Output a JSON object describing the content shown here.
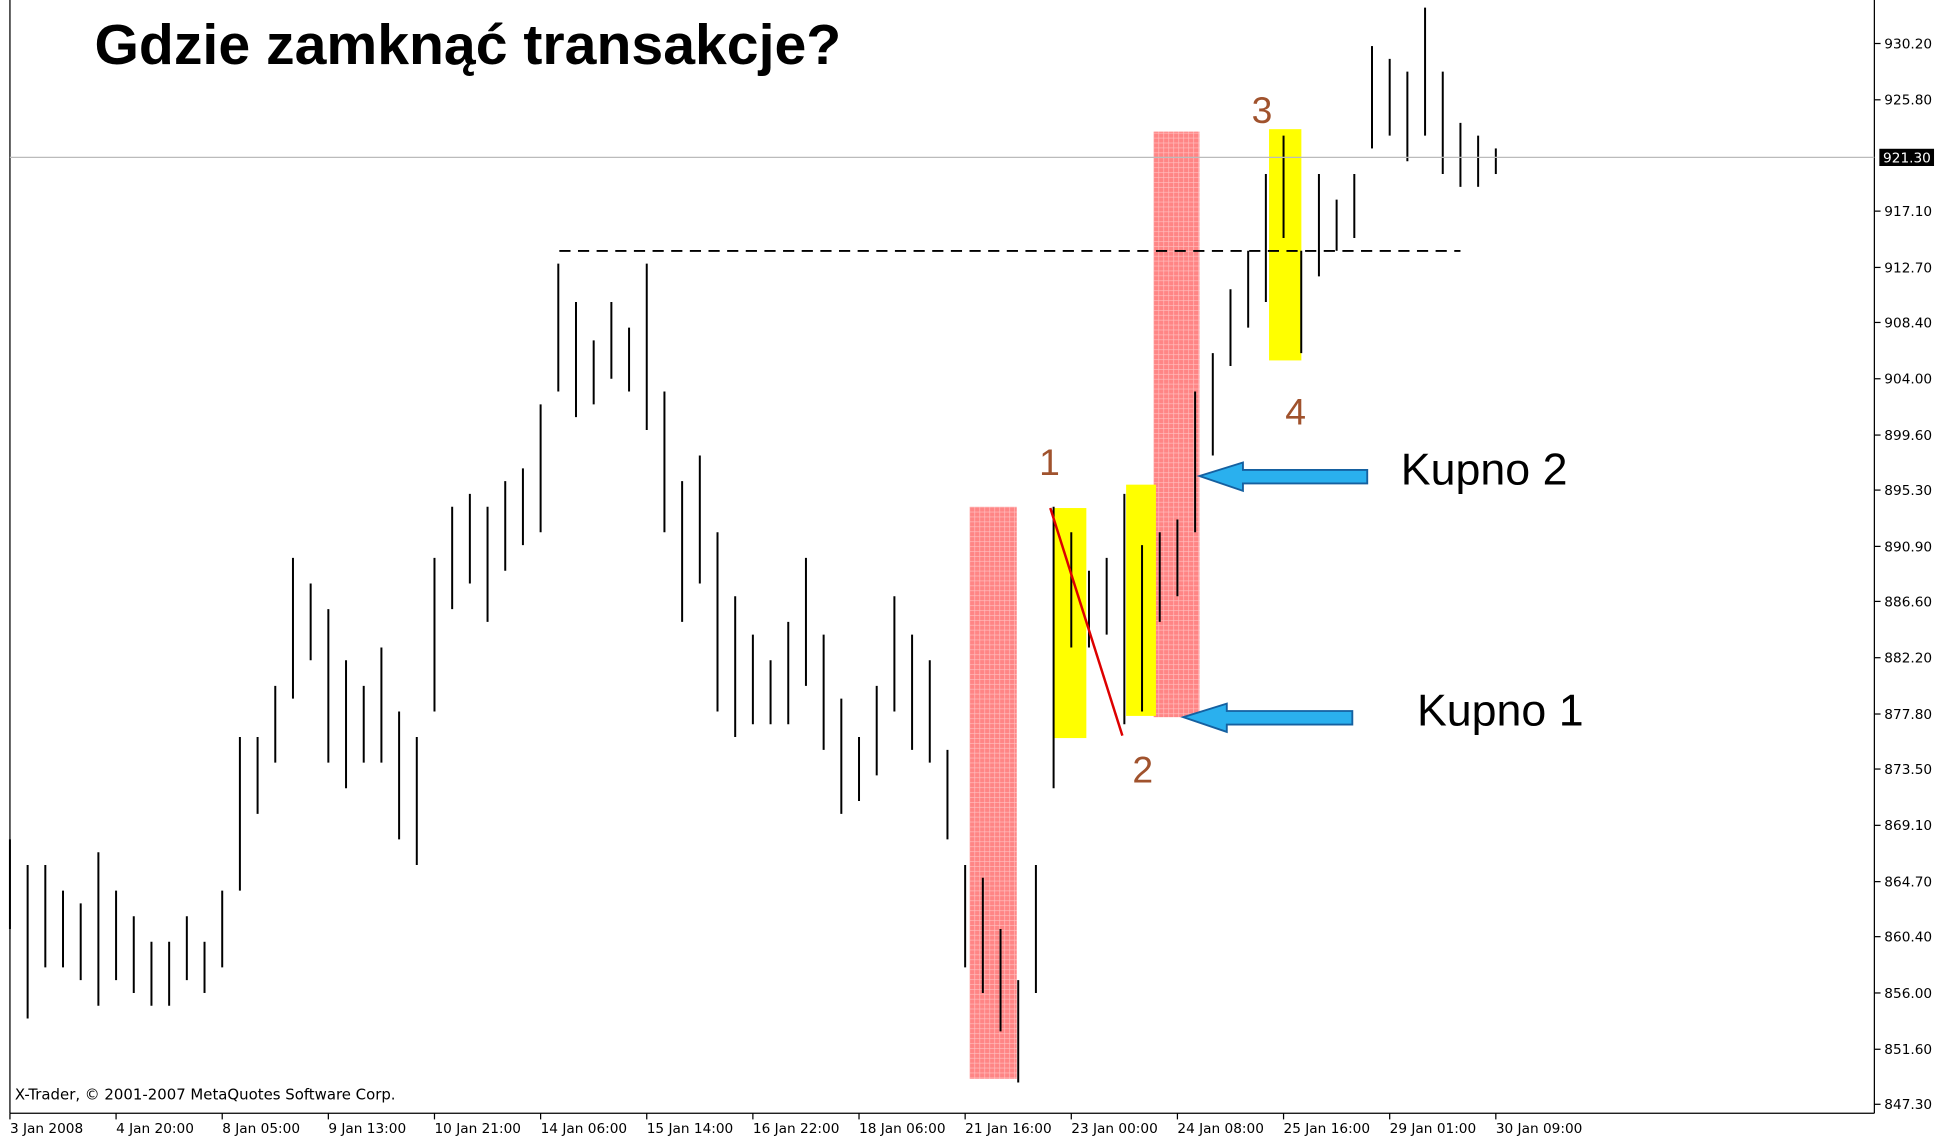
{
  "chart_data": {
    "type": "ohlc",
    "title": "Gdzie zamknąć transakcje?",
    "copyright": "X-Trader, © 2001-2007 MetaQuotes Software Corp.",
    "color": "#000000",
    "high": [
      868,
      866,
      866,
      864,
      863,
      867,
      864,
      862,
      860,
      860,
      862,
      860,
      864,
      876,
      876,
      880,
      890,
      888,
      886,
      882,
      880,
      883,
      878,
      876,
      890,
      894,
      895,
      894,
      896,
      897,
      902,
      913,
      910,
      907,
      910,
      908,
      913,
      903,
      896,
      898,
      892,
      887,
      884,
      882,
      885,
      890,
      884,
      879,
      876,
      880,
      887,
      884,
      882,
      875,
      866,
      865,
      861,
      857,
      866,
      894,
      892,
      889,
      890,
      895,
      891,
      892,
      893,
      903,
      906,
      911,
      914,
      920,
      923,
      914,
      920,
      918,
      920,
      930,
      929,
      928,
      933,
      928,
      924,
      923,
      922
    ],
    "low": [
      861,
      854,
      858,
      858,
      857,
      855,
      857,
      856,
      855,
      855,
      857,
      856,
      858,
      864,
      870,
      874,
      879,
      882,
      874,
      872,
      874,
      874,
      868,
      866,
      878,
      886,
      888,
      885,
      889,
      891,
      892,
      903,
      901,
      902,
      904,
      903,
      900,
      892,
      885,
      888,
      878,
      876,
      877,
      877,
      877,
      880,
      875,
      870,
      871,
      873,
      878,
      875,
      874,
      868,
      858,
      856,
      853,
      849,
      856,
      872,
      883,
      883,
      884,
      877,
      878,
      885,
      887,
      892,
      898,
      905,
      908,
      910,
      915,
      906,
      912,
      914,
      915,
      922,
      923,
      921,
      923,
      920,
      919,
      919,
      920
    ],
    "xlim": [
      0,
      105.4
    ],
    "xticks": [
      {
        "value": 0,
        "label": "3 Jan 2008"
      },
      {
        "value": 6,
        "label": "4 Jan 20:00"
      },
      {
        "value": 12,
        "label": "8 Jan 05:00"
      },
      {
        "value": 18,
        "label": "9 Jan 13:00"
      },
      {
        "value": 24,
        "label": "10 Jan 21:00"
      },
      {
        "value": 30,
        "label": "14 Jan 06:00"
      },
      {
        "value": 36,
        "label": "15 Jan 14:00"
      },
      {
        "value": 42,
        "label": "16 Jan 22:00"
      },
      {
        "value": 48,
        "label": "18 Jan 06:00"
      },
      {
        "value": 54,
        "label": "21 Jan 16:00"
      },
      {
        "value": 60,
        "label": "23 Jan 00:00"
      },
      {
        "value": 66,
        "label": "24 Jan 08:00"
      },
      {
        "value": 72,
        "label": "25 Jan 16:00"
      },
      {
        "value": 78,
        "label": "29 Jan 01:00"
      },
      {
        "value": 84,
        "label": "30 Jan 09:00"
      }
    ],
    "ylim": [
      846.6,
      933.6
    ],
    "yticks": [
      {
        "value": 847.3,
        "label": "847.30"
      },
      {
        "value": 851.6,
        "label": "851.60"
      },
      {
        "value": 856,
        "label": "856.00"
      },
      {
        "value": 860.4,
        "label": "860.40"
      },
      {
        "value": 864.7,
        "label": "864.70"
      },
      {
        "value": 869.1,
        "label": "869.10"
      },
      {
        "value": 873.5,
        "label": "873.50"
      },
      {
        "value": 877.8,
        "label": "877.80"
      },
      {
        "value": 882.2,
        "label": "882.20"
      },
      {
        "value": 886.6,
        "label": "886.60"
      },
      {
        "value": 890.9,
        "label": "890.90"
      },
      {
        "value": 895.3,
        "label": "895.30"
      },
      {
        "value": 899.6,
        "label": "899.60"
      },
      {
        "value": 904,
        "label": "904.00"
      },
      {
        "value": 908.4,
        "label": "908.40"
      },
      {
        "value": 912.7,
        "label": "912.70"
      },
      {
        "value": 917.1,
        "label": "917.10"
      },
      {
        "value": 925.8,
        "label": "925.80"
      },
      {
        "value": 930.2,
        "label": "930.20"
      }
    ],
    "current_price": {
      "value": 921.3,
      "label": "921.30"
    },
    "annotations": [
      "1",
      "2",
      "3",
      "4",
      "Kupno 2",
      "Kupno 1"
    ]
  }
}
